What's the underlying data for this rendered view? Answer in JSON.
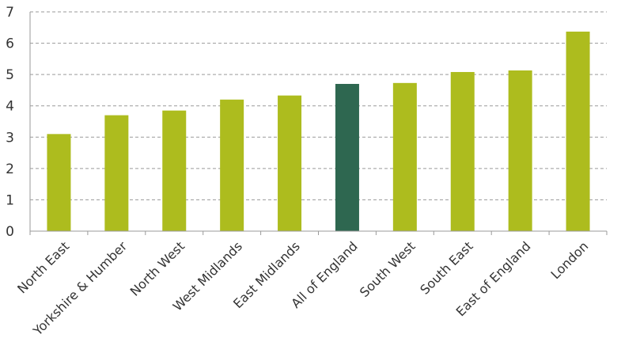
{
  "chart_data": {
    "type": "bar",
    "categories": [
      "North East",
      "Yorkshire & Humber",
      "North West",
      "West Midlands",
      "East Midlands",
      "All of England",
      "South West",
      "South East",
      "East of England",
      "London"
    ],
    "values": [
      3.1,
      3.7,
      3.85,
      4.2,
      4.33,
      4.7,
      4.73,
      5.08,
      5.13,
      6.37
    ],
    "highlight_index": 5,
    "ylim": [
      0,
      7
    ],
    "yticks": [
      "0",
      "1",
      "2",
      "3",
      "4",
      "5",
      "6",
      "7"
    ],
    "grid": true,
    "colors": {
      "bar": "#adbc1e",
      "highlight": "#2e6750"
    },
    "title": "",
    "xlabel": "",
    "ylabel": ""
  }
}
